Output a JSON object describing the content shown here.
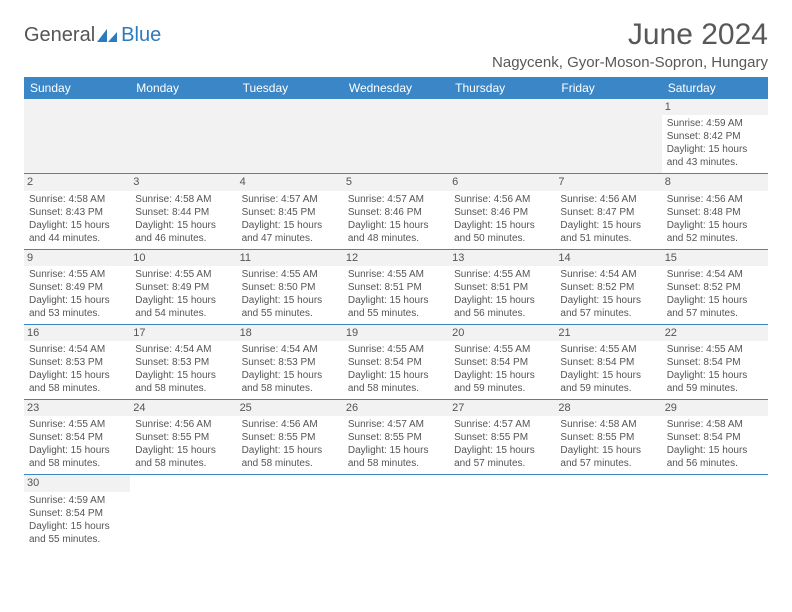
{
  "logo": {
    "part1": "General",
    "part2": "Blue"
  },
  "title": "June 2024",
  "location": "Nagycenk, Gyor-Moson-Sopron, Hungary",
  "dayHeaders": [
    "Sunday",
    "Monday",
    "Tuesday",
    "Wednesday",
    "Thursday",
    "Friday",
    "Saturday"
  ],
  "colors": {
    "headerBg": "#3b86c6",
    "headerFg": "#ffffff",
    "grayBg": "#f2f2f2",
    "border": "#3b86c6",
    "text": "#555555",
    "accent": "#2b7bbf"
  },
  "weeks": [
    [
      null,
      null,
      null,
      null,
      null,
      null,
      {
        "num": "1",
        "sunrise": "4:59 AM",
        "sunset": "8:42 PM",
        "daylight": "15 hours and 43 minutes."
      }
    ],
    [
      {
        "num": "2",
        "sunrise": "4:58 AM",
        "sunset": "8:43 PM",
        "daylight": "15 hours and 44 minutes."
      },
      {
        "num": "3",
        "sunrise": "4:58 AM",
        "sunset": "8:44 PM",
        "daylight": "15 hours and 46 minutes."
      },
      {
        "num": "4",
        "sunrise": "4:57 AM",
        "sunset": "8:45 PM",
        "daylight": "15 hours and 47 minutes."
      },
      {
        "num": "5",
        "sunrise": "4:57 AM",
        "sunset": "8:46 PM",
        "daylight": "15 hours and 48 minutes."
      },
      {
        "num": "6",
        "sunrise": "4:56 AM",
        "sunset": "8:46 PM",
        "daylight": "15 hours and 50 minutes."
      },
      {
        "num": "7",
        "sunrise": "4:56 AM",
        "sunset": "8:47 PM",
        "daylight": "15 hours and 51 minutes."
      },
      {
        "num": "8",
        "sunrise": "4:56 AM",
        "sunset": "8:48 PM",
        "daylight": "15 hours and 52 minutes."
      }
    ],
    [
      {
        "num": "9",
        "sunrise": "4:55 AM",
        "sunset": "8:49 PM",
        "daylight": "15 hours and 53 minutes."
      },
      {
        "num": "10",
        "sunrise": "4:55 AM",
        "sunset": "8:49 PM",
        "daylight": "15 hours and 54 minutes."
      },
      {
        "num": "11",
        "sunrise": "4:55 AM",
        "sunset": "8:50 PM",
        "daylight": "15 hours and 55 minutes."
      },
      {
        "num": "12",
        "sunrise": "4:55 AM",
        "sunset": "8:51 PM",
        "daylight": "15 hours and 55 minutes."
      },
      {
        "num": "13",
        "sunrise": "4:55 AM",
        "sunset": "8:51 PM",
        "daylight": "15 hours and 56 minutes."
      },
      {
        "num": "14",
        "sunrise": "4:54 AM",
        "sunset": "8:52 PM",
        "daylight": "15 hours and 57 minutes."
      },
      {
        "num": "15",
        "sunrise": "4:54 AM",
        "sunset": "8:52 PM",
        "daylight": "15 hours and 57 minutes."
      }
    ],
    [
      {
        "num": "16",
        "sunrise": "4:54 AM",
        "sunset": "8:53 PM",
        "daylight": "15 hours and 58 minutes."
      },
      {
        "num": "17",
        "sunrise": "4:54 AM",
        "sunset": "8:53 PM",
        "daylight": "15 hours and 58 minutes."
      },
      {
        "num": "18",
        "sunrise": "4:54 AM",
        "sunset": "8:53 PM",
        "daylight": "15 hours and 58 minutes."
      },
      {
        "num": "19",
        "sunrise": "4:55 AM",
        "sunset": "8:54 PM",
        "daylight": "15 hours and 58 minutes."
      },
      {
        "num": "20",
        "sunrise": "4:55 AM",
        "sunset": "8:54 PM",
        "daylight": "15 hours and 59 minutes."
      },
      {
        "num": "21",
        "sunrise": "4:55 AM",
        "sunset": "8:54 PM",
        "daylight": "15 hours and 59 minutes."
      },
      {
        "num": "22",
        "sunrise": "4:55 AM",
        "sunset": "8:54 PM",
        "daylight": "15 hours and 59 minutes."
      }
    ],
    [
      {
        "num": "23",
        "sunrise": "4:55 AM",
        "sunset": "8:54 PM",
        "daylight": "15 hours and 58 minutes."
      },
      {
        "num": "24",
        "sunrise": "4:56 AM",
        "sunset": "8:55 PM",
        "daylight": "15 hours and 58 minutes."
      },
      {
        "num": "25",
        "sunrise": "4:56 AM",
        "sunset": "8:55 PM",
        "daylight": "15 hours and 58 minutes."
      },
      {
        "num": "26",
        "sunrise": "4:57 AM",
        "sunset": "8:55 PM",
        "daylight": "15 hours and 58 minutes."
      },
      {
        "num": "27",
        "sunrise": "4:57 AM",
        "sunset": "8:55 PM",
        "daylight": "15 hours and 57 minutes."
      },
      {
        "num": "28",
        "sunrise": "4:58 AM",
        "sunset": "8:55 PM",
        "daylight": "15 hours and 57 minutes."
      },
      {
        "num": "29",
        "sunrise": "4:58 AM",
        "sunset": "8:54 PM",
        "daylight": "15 hours and 56 minutes."
      }
    ],
    [
      {
        "num": "30",
        "sunrise": "4:59 AM",
        "sunset": "8:54 PM",
        "daylight": "15 hours and 55 minutes."
      },
      null,
      null,
      null,
      null,
      null,
      null
    ]
  ],
  "labels": {
    "sunrise": "Sunrise:",
    "sunset": "Sunset:",
    "daylight": "Daylight:"
  }
}
